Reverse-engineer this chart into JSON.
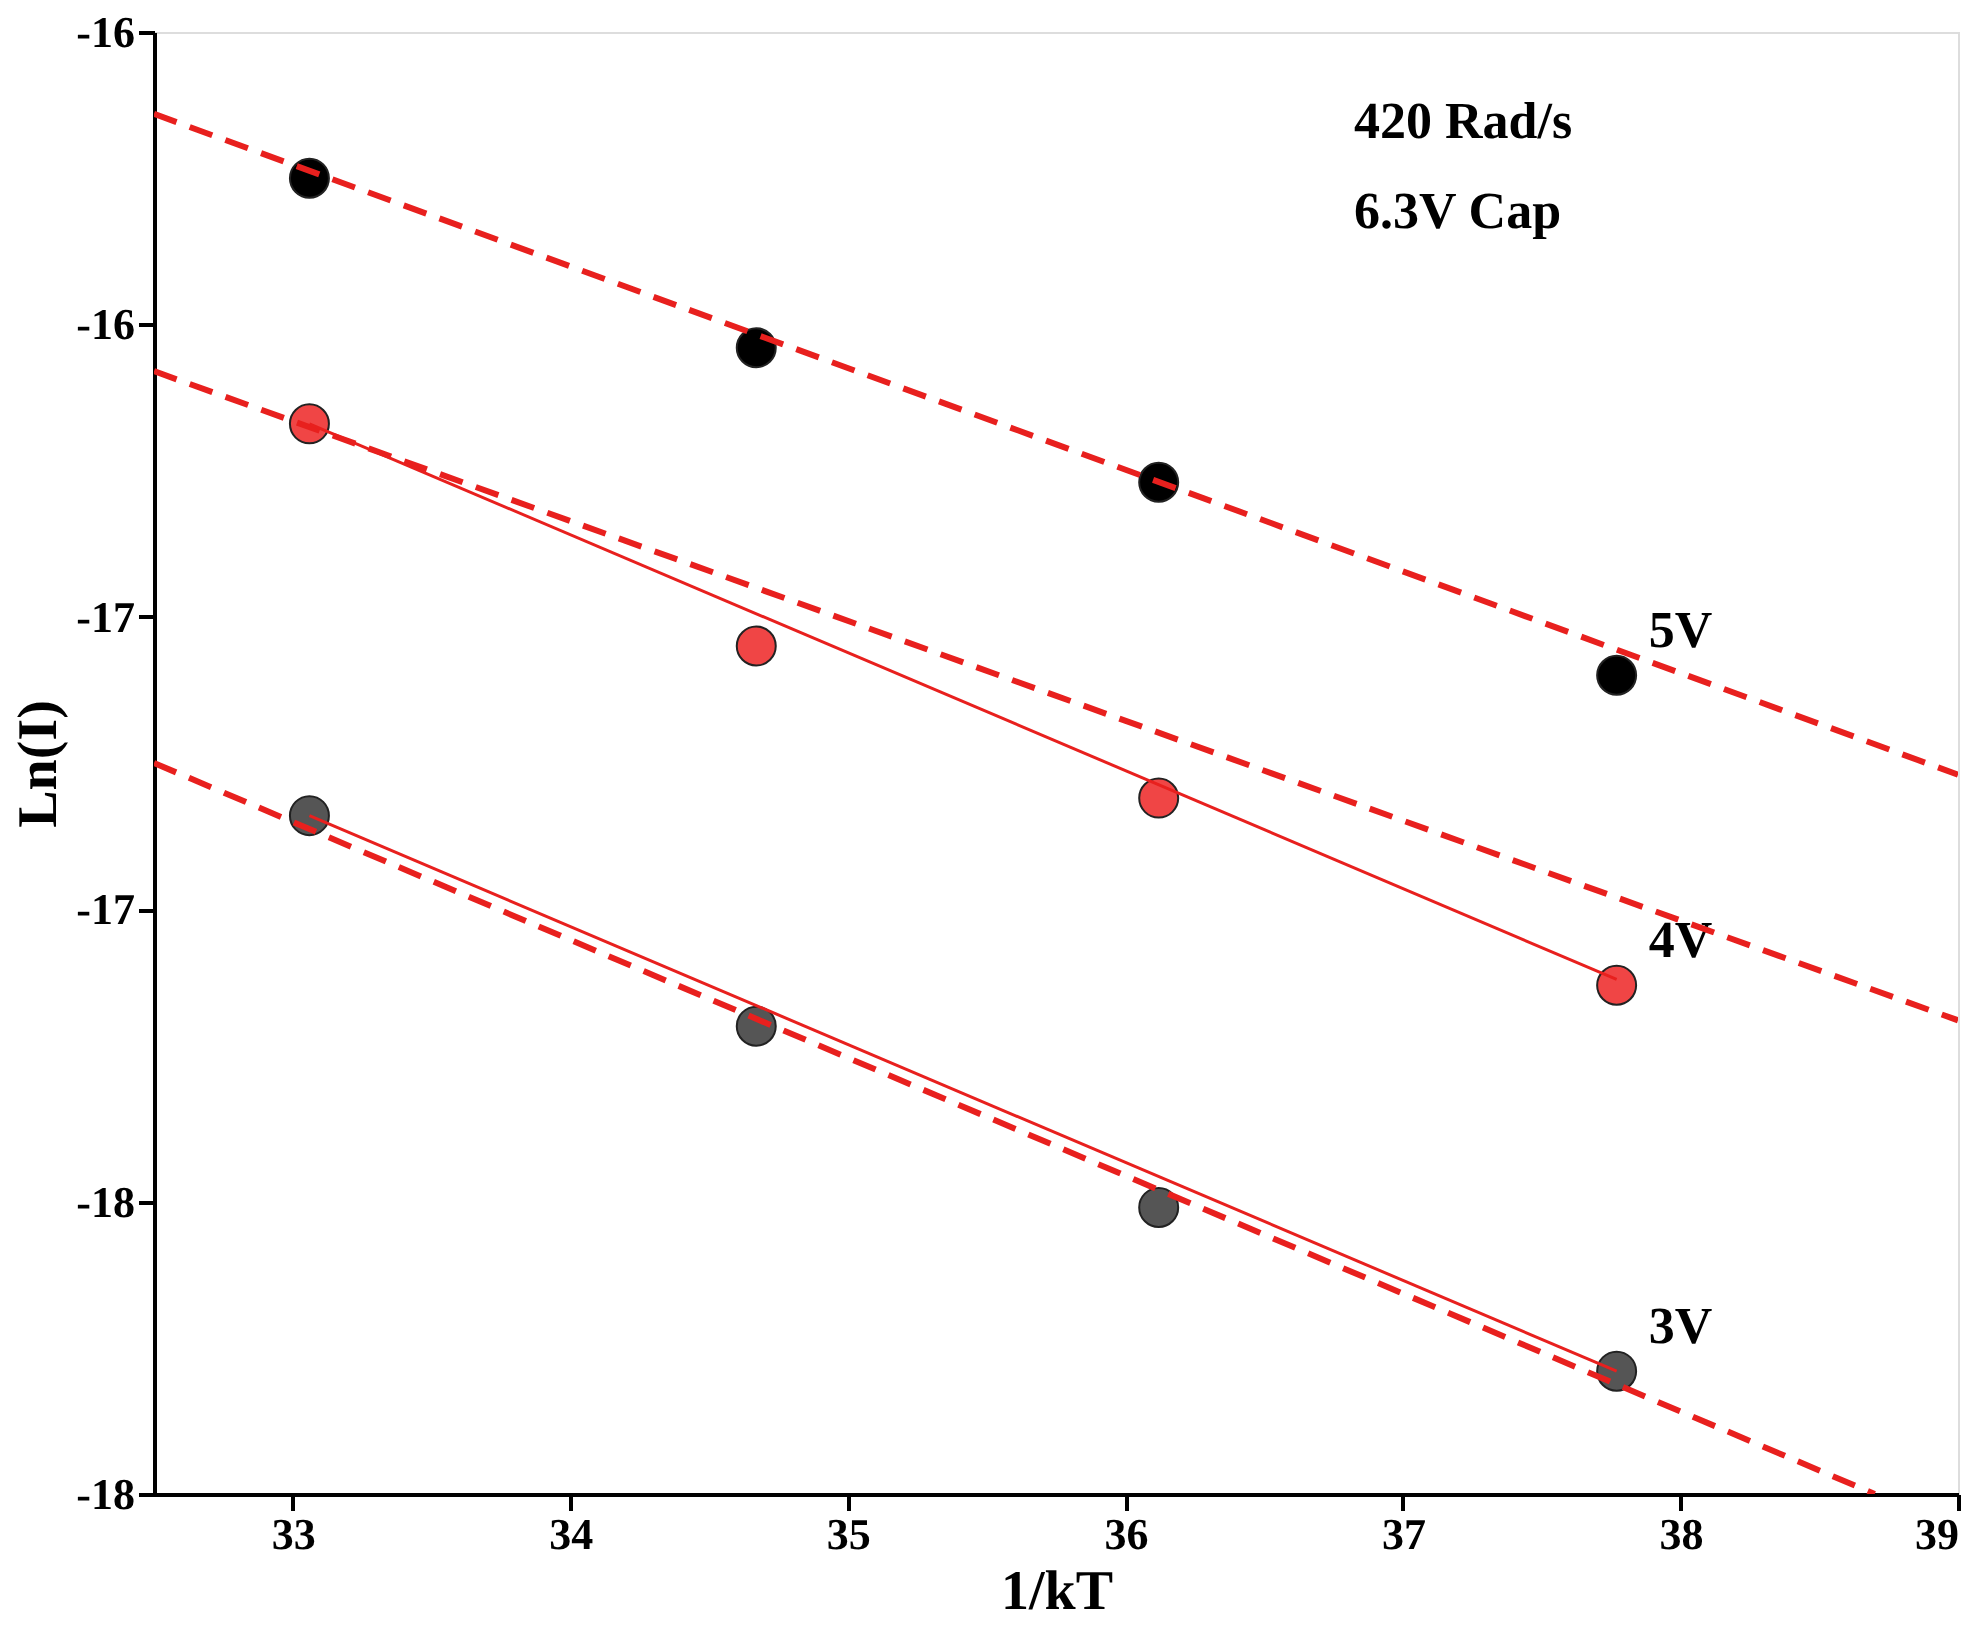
{
  "chart_data": {
    "type": "scatter",
    "xlabel": "1/kT",
    "ylabel": "Ln(I)",
    "xlim": [
      32.5,
      39
    ],
    "xticks": [
      33,
      34,
      35,
      36,
      37,
      38,
      39
    ],
    "ylim": [
      -18,
      -15.5
    ],
    "yticks": [
      {
        "value": -18,
        "label": "-18"
      },
      {
        "value": -17.5,
        "label": "-18"
      },
      {
        "value": -17,
        "label": "-17"
      },
      {
        "value": -16.5,
        "label": "-17"
      },
      {
        "value": -16,
        "label": "-16"
      },
      {
        "value": -15.5,
        "label": "-16"
      }
    ],
    "grid": false,
    "annotations": [
      "420 Rad/s",
      "6.3V Cap"
    ],
    "series": [
      {
        "name": "5V",
        "marker": "circle",
        "color": "#000000",
        "x": [
          33.06,
          34.67,
          36.12,
          37.77
        ],
        "values": [
          -15.75,
          -16.04,
          -16.27,
          -16.6
        ]
      },
      {
        "name": "4V",
        "marker": "circle",
        "color": "#f04545",
        "x": [
          33.06,
          34.67,
          36.12,
          37.77
        ],
        "values": [
          -16.17,
          -16.55,
          -16.81,
          -17.13
        ]
      },
      {
        "name": "3V",
        "marker": "circle",
        "color": "#555555",
        "x": [
          33.06,
          34.67,
          36.12,
          37.77
        ],
        "values": [
          -16.84,
          -17.2,
          -17.51,
          -17.79
        ]
      },
      {
        "type": "line",
        "line_style": "dashed",
        "color": "#e8201e",
        "x": [
          32.5,
          39
        ],
        "values": [
          -15.64,
          -16.77
        ]
      },
      {
        "type": "line",
        "line_style": "dashed",
        "color": "#e8201e",
        "x": [
          32.5,
          39
        ],
        "values": [
          -16.08,
          -17.19
        ]
      },
      {
        "type": "line",
        "line_style": "dashed",
        "color": "#e8201e",
        "x": [
          32.5,
          38.7
        ],
        "values": [
          -16.75,
          -18.0
        ]
      },
      {
        "type": "line",
        "line_style": "solid",
        "color": "#e8201e",
        "x": [
          33.06,
          37.77
        ],
        "values": [
          -16.17,
          -17.12
        ]
      },
      {
        "type": "line",
        "line_style": "solid",
        "color": "#e8201e",
        "x": [
          33.06,
          37.77
        ],
        "values": [
          -16.84,
          -17.79
        ]
      }
    ]
  }
}
